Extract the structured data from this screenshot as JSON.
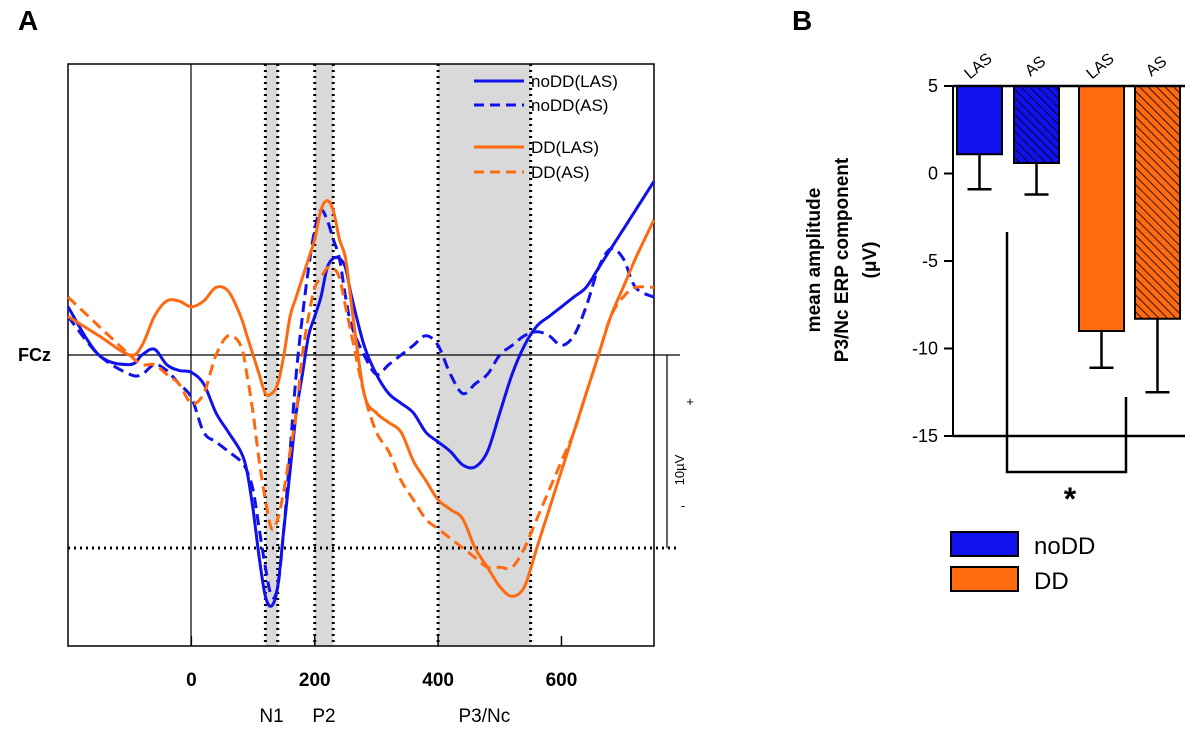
{
  "panels": {
    "a": "A",
    "b": "B"
  },
  "colors": {
    "noDD": "#1111ee",
    "DD": "#ff6a10",
    "shade": "#d9d9d9"
  },
  "chart_data": [
    {
      "type": "line",
      "panel": "A",
      "channel": "FCz",
      "xlim": [
        -200,
        750
      ],
      "xticks": [
        0,
        200,
        400,
        600
      ],
      "scale_bar": {
        "label": "10µV",
        "plus": "+",
        "minus": "-"
      },
      "components": [
        {
          "name": "N1",
          "window": [
            120,
            140
          ]
        },
        {
          "name": "P2",
          "window": [
            200,
            230
          ]
        },
        {
          "name": "P3/Nc",
          "window": [
            400,
            550
          ]
        }
      ],
      "ylim": [
        -13,
        9
      ],
      "x": [
        -200,
        -150,
        -100,
        -80,
        -60,
        -40,
        -20,
        0,
        20,
        40,
        60,
        80,
        90,
        100,
        110,
        120,
        130,
        140,
        150,
        160,
        170,
        180,
        190,
        200,
        210,
        220,
        230,
        240,
        250,
        260,
        280,
        300,
        320,
        340,
        360,
        380,
        400,
        420,
        440,
        460,
        480,
        500,
        520,
        540,
        560,
        580,
        600,
        620,
        640,
        660,
        680,
        700,
        720,
        750
      ],
      "series": [
        {
          "name": "noDD(LAS)",
          "group": "noDD",
          "dash": "solid",
          "values": [
            2.5,
            0,
            -0.5,
            0,
            0.3,
            -0.5,
            -0.8,
            -0.9,
            -1.5,
            -3,
            -4,
            -5,
            -6,
            -8,
            -10.5,
            -12.5,
            -13,
            -12,
            -9,
            -6,
            -3,
            -1,
            1,
            2,
            3,
            4.5,
            5,
            5,
            4.5,
            3,
            0.5,
            -1,
            -2,
            -2.5,
            -3,
            -4,
            -4.5,
            -5,
            -5.7,
            -5.8,
            -5,
            -3,
            -1,
            0.5,
            1.5,
            2,
            2.5,
            3,
            3.5,
            4.5,
            5.5,
            6.5,
            7.5,
            9
          ]
        },
        {
          "name": "noDD(AS)",
          "group": "noDD",
          "dash": "dashed",
          "values": [
            2,
            0,
            -1,
            -1,
            -0.5,
            -0.8,
            -1.5,
            -2.2,
            -4,
            -4.5,
            -5,
            -5.5,
            -6,
            -7,
            -9,
            -11,
            -12.5,
            -12,
            -9,
            -5,
            -1,
            2,
            4.5,
            6.5,
            7.5,
            7,
            6,
            5,
            3,
            1.5,
            0,
            -1,
            -0.5,
            0,
            0.5,
            1,
            0.5,
            -1,
            -2,
            -1.5,
            -1,
            0,
            0.5,
            1,
            1.2,
            1,
            0.5,
            1,
            2.5,
            4.5,
            5.5,
            5,
            3.5,
            3
          ]
        },
        {
          "name": "DD(LAS)",
          "group": "DD",
          "dash": "solid",
          "values": [
            2,
            1,
            0,
            0.5,
            2,
            2.8,
            2.8,
            2.5,
            2.8,
            3.5,
            3.3,
            2,
            1,
            0,
            -1,
            -2,
            -2,
            -1.5,
            0,
            2,
            3,
            4,
            5,
            6,
            7.5,
            8,
            7.5,
            6,
            5,
            2.5,
            -2,
            -3,
            -3.5,
            -4,
            -5.5,
            -6.5,
            -7.5,
            -8,
            -8.5,
            -10,
            -11,
            -12,
            -12.5,
            -12,
            -10,
            -8,
            -6,
            -4,
            -2,
            0,
            2,
            3.5,
            5,
            7
          ]
        },
        {
          "name": "DD(AS)",
          "group": "DD",
          "dash": "dashed",
          "values": [
            3,
            1.5,
            0,
            -0.5,
            -0.5,
            -1,
            -1.5,
            -2.5,
            -2,
            0,
            1,
            0.5,
            -1,
            -3,
            -5.5,
            -7.5,
            -9,
            -8.5,
            -7,
            -5,
            -3,
            0,
            2,
            3.5,
            4,
            4.5,
            4.5,
            4,
            2.5,
            1,
            -2,
            -4,
            -5,
            -6.5,
            -7.5,
            -8.5,
            -9,
            -9.5,
            -10,
            -10.5,
            -11,
            -11,
            -11,
            -10,
            -8.5,
            -7,
            -5.5,
            -4,
            -2,
            0,
            2,
            3,
            3.5,
            3.5
          ]
        }
      ]
    },
    {
      "type": "bar",
      "panel": "B",
      "title": "",
      "ylabel_line1": "mean amplitude",
      "ylabel_line2": "P3/Nc ERP component",
      "ylabel_line3": "(μV)",
      "ylim": [
        -15,
        5
      ],
      "yticks": [
        5,
        0,
        -5,
        -10,
        -15
      ],
      "ytick_labels": [
        "5",
        "0",
        "-5",
        "-10",
        "-15"
      ],
      "bars": [
        {
          "category": "LAS",
          "group": "noDD",
          "value": 1.1,
          "error": 2.0,
          "hatched": false
        },
        {
          "category": "AS",
          "group": "noDD",
          "value": 0.6,
          "error": 1.8,
          "hatched": true
        },
        {
          "category": "LAS",
          "group": "DD",
          "value": -9.0,
          "error": 2.1,
          "hatched": false
        },
        {
          "category": "AS",
          "group": "DD",
          "value": -8.3,
          "error": 4.2,
          "hatched": true
        }
      ],
      "significance": "*",
      "legend": [
        {
          "label": "noDD",
          "group": "noDD"
        },
        {
          "label": "DD",
          "group": "DD"
        }
      ]
    }
  ]
}
